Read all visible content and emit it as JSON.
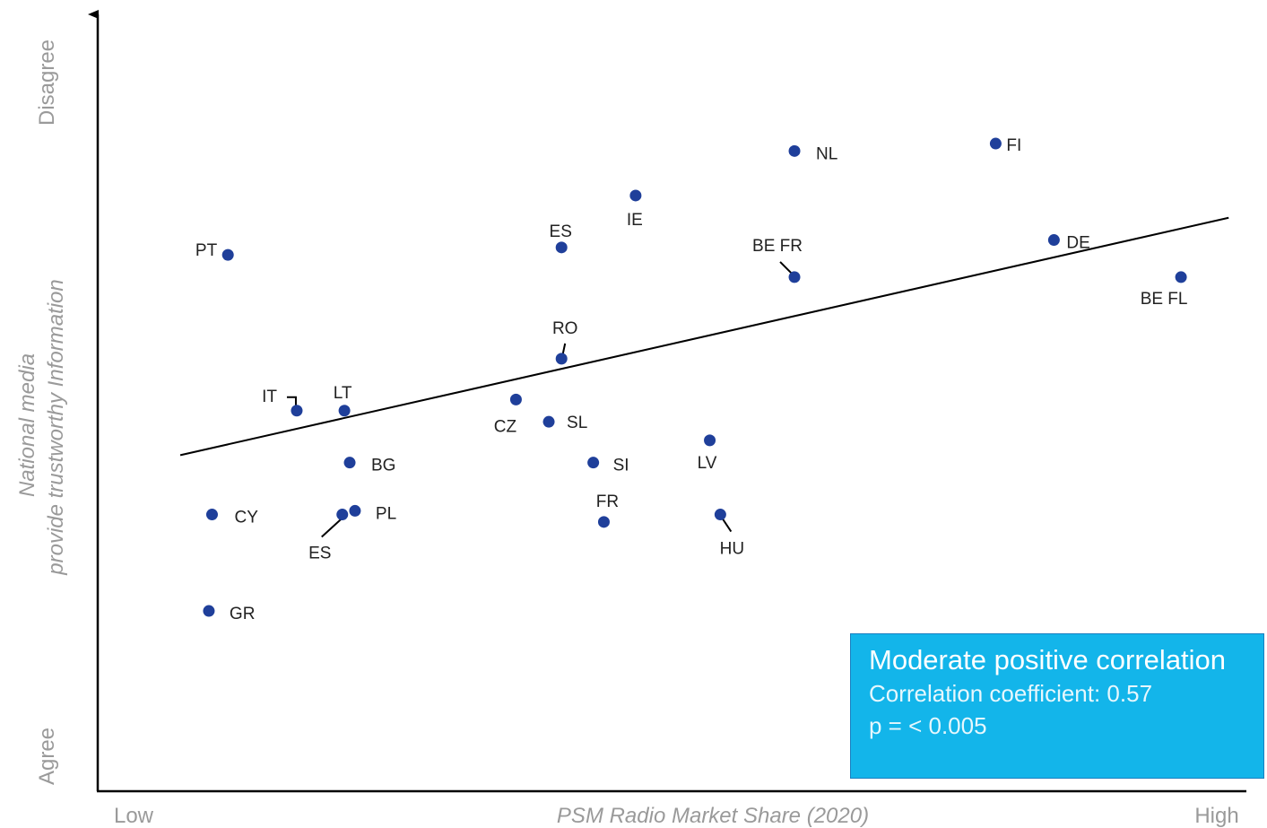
{
  "chart_data": {
    "type": "scatter",
    "xlabel": "PSM Radio Market Share (2020)",
    "ylabel_lines": [
      "National media",
      "provide trustworthy Information"
    ],
    "x_end_labels": {
      "low": "Low",
      "high": "High"
    },
    "y_end_labels": {
      "low": "Agree",
      "high": "Disagree"
    },
    "xlim": [
      0,
      100
    ],
    "ylim": [
      0,
      100
    ],
    "grid": false,
    "points": [
      {
        "label": "PT",
        "x": 9.5,
        "y": 70
      },
      {
        "label": "IT",
        "x": 16,
        "y": 49
      },
      {
        "label": "LT",
        "x": 20.5,
        "y": 49
      },
      {
        "label": "BG",
        "x": 21,
        "y": 42
      },
      {
        "label": "PL",
        "x": 21.5,
        "y": 35.5
      },
      {
        "label": "ES",
        "x": 20.3,
        "y": 35
      },
      {
        "label": "CY",
        "x": 8,
        "y": 35
      },
      {
        "label": "GR",
        "x": 7.7,
        "y": 22
      },
      {
        "label": "ES",
        "x": 41,
        "y": 71
      },
      {
        "label": "IE",
        "x": 48,
        "y": 78
      },
      {
        "label": "RO",
        "x": 41,
        "y": 56
      },
      {
        "label": "CZ",
        "x": 36.7,
        "y": 50.5
      },
      {
        "label": "SL",
        "x": 39.8,
        "y": 47.5
      },
      {
        "label": "SI",
        "x": 44,
        "y": 42
      },
      {
        "label": "FR",
        "x": 45,
        "y": 34
      },
      {
        "label": "LV",
        "x": 55,
        "y": 45
      },
      {
        "label": "HU",
        "x": 56,
        "y": 35
      },
      {
        "label": "NL",
        "x": 63,
        "y": 84
      },
      {
        "label": "BE FR",
        "x": 63,
        "y": 67
      },
      {
        "label": "FI",
        "x": 82,
        "y": 85
      },
      {
        "label": "DE",
        "x": 87.5,
        "y": 72
      },
      {
        "label": "BE FL",
        "x": 99.5,
        "y": 67
      }
    ],
    "trendline": {
      "x": [
        5,
        104
      ],
      "y": [
        43,
        75
      ]
    },
    "annotation": {
      "headline": "Moderate positive correlation",
      "coefficient": "Correlation coefficient: 0.57",
      "p_value": "p = < 0.005"
    },
    "colors": {
      "points": "#1f3f9a",
      "annotation_box": "#13b5ea",
      "axis_text": "#9a9a9a"
    }
  }
}
